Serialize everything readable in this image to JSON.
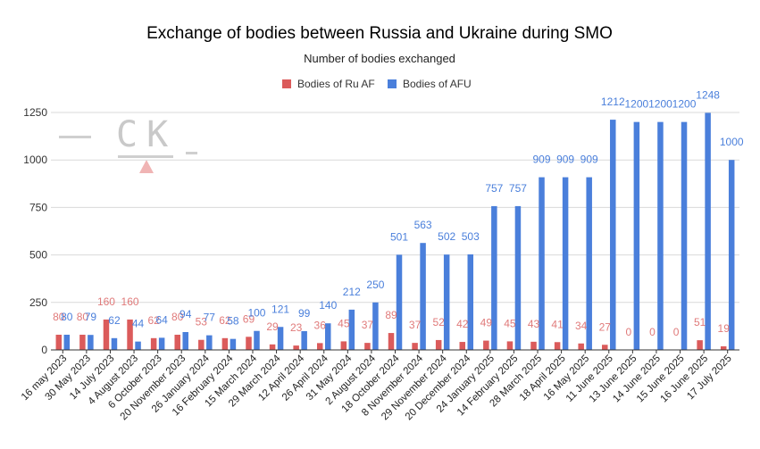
{
  "chart_data": {
    "type": "bar",
    "title": "Exchange of bodies between Russia and Ukraine during SMO",
    "subtitle": "Number of bodies exchanged",
    "xlabel": "",
    "ylabel": "",
    "ylim": [
      0,
      1375
    ],
    "yticks": [
      0,
      250,
      500,
      750,
      1000,
      1250
    ],
    "grid": true,
    "legend_position": "top",
    "categories": [
      "16 may 2023",
      "30 May 2023",
      "14 July 2023",
      "4 August 2023",
      "6 October 2023",
      "20 November 2023",
      "26 January 2024",
      "16 February 2024",
      "15 March 2024",
      "29 March 2024",
      "12 April 2024",
      "26 April 2024",
      "31 May 2024",
      "2 August 2024",
      "18 October 2024",
      "8 November 2024",
      "29 November 2024",
      "20 December 2024",
      "24 January 2025",
      "14 February 2025",
      "28 March 2025",
      "18 April 2025",
      "16 May 2025",
      "11 June 2025",
      "13 June 2025",
      "14 June 2025",
      "15 June 2025",
      "16 June 2025",
      "17 July 2025"
    ],
    "series": [
      {
        "name": "Bodies of Ru AF",
        "color": "#db5b5b",
        "label_color": "#e07a7a",
        "values": [
          80,
          80,
          160,
          160,
          62,
          80,
          53,
          62,
          69,
          29,
          23,
          36,
          45,
          37,
          89,
          37,
          52,
          42,
          49,
          45,
          43,
          41,
          34,
          27,
          0,
          0,
          0,
          51,
          19
        ]
      },
      {
        "name": "Bodies of AFU",
        "color": "#4a7fdb",
        "label_color": "#4a7fdb",
        "values": [
          80,
          79,
          62,
          44,
          64,
          94,
          77,
          58,
          100,
          121,
          99,
          140,
          212,
          250,
          501,
          563,
          502,
          503,
          757,
          757,
          909,
          909,
          909,
          1212,
          1200,
          1200,
          1200,
          1248,
          1000
        ]
      }
    ]
  },
  "watermark": {
    "text": "CK"
  }
}
